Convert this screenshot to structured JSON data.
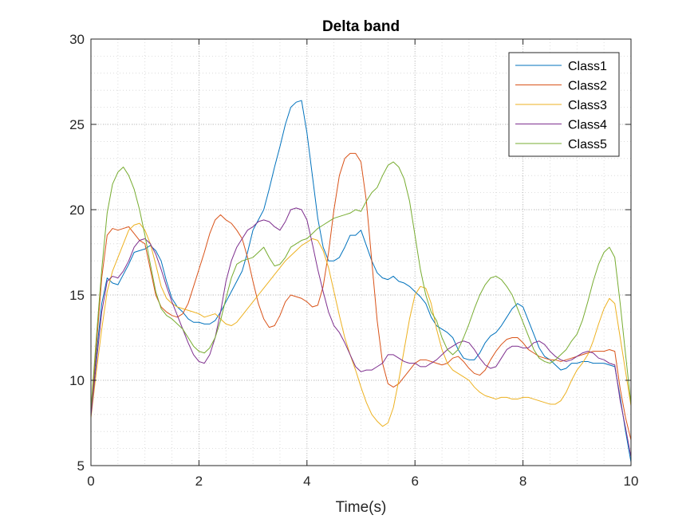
{
  "chart_data": {
    "type": "line",
    "title": "Delta band",
    "xlabel": "Time(s)",
    "ylabel": "",
    "xlim": [
      0,
      10
    ],
    "ylim": [
      5,
      30
    ],
    "xticks": [
      0,
      2,
      4,
      6,
      8,
      10
    ],
    "yticks": [
      5,
      10,
      15,
      20,
      25,
      30
    ],
    "grid": "on (major and minor, dotted)",
    "legend_location": "top-right",
    "series": [
      {
        "name": "Class1",
        "color": "#0072BD",
        "x": [
          0,
          0.1,
          0.2,
          0.3,
          0.4,
          0.5,
          0.6,
          0.7,
          0.8,
          0.9,
          1.0,
          1.1,
          1.2,
          1.3,
          1.4,
          1.5,
          1.6,
          1.7,
          1.8,
          1.9,
          2.0,
          2.1,
          2.2,
          2.3,
          2.4,
          2.5,
          2.6,
          2.7,
          2.8,
          2.9,
          3.0,
          3.1,
          3.2,
          3.3,
          3.4,
          3.5,
          3.6,
          3.7,
          3.8,
          3.9,
          4.0,
          4.1,
          4.2,
          4.3,
          4.4,
          4.5,
          4.6,
          4.7,
          4.8,
          4.9,
          5.0,
          5.1,
          5.2,
          5.3,
          5.4,
          5.5,
          5.6,
          5.7,
          5.8,
          5.9,
          6.0,
          6.1,
          6.2,
          6.3,
          6.4,
          6.5,
          6.6,
          6.7,
          6.8,
          6.9,
          7.0,
          7.1,
          7.2,
          7.3,
          7.4,
          7.5,
          7.6,
          7.7,
          7.8,
          7.9,
          8.0,
          8.1,
          8.2,
          8.3,
          8.4,
          8.5,
          8.6,
          8.7,
          8.8,
          8.9,
          9.0,
          9.1,
          9.2,
          9.3,
          9.4,
          9.5,
          9.6,
          9.7,
          9.8,
          9.9,
          10.0
        ],
        "y": [
          8.2,
          11.5,
          14.5,
          16.0,
          15.7,
          15.6,
          16.2,
          16.8,
          17.5,
          17.6,
          17.7,
          17.9,
          17.6,
          17.0,
          15.8,
          14.8,
          14.3,
          14.0,
          13.6,
          13.4,
          13.4,
          13.3,
          13.3,
          13.5,
          14.0,
          14.6,
          15.2,
          15.8,
          16.4,
          17.5,
          18.8,
          19.4,
          20.0,
          21.2,
          22.5,
          23.7,
          25.0,
          26.0,
          26.3,
          26.4,
          24.5,
          22.0,
          19.5,
          17.8,
          17.0,
          17.0,
          17.2,
          17.8,
          18.5,
          18.5,
          18.8,
          17.9,
          17.0,
          16.3,
          16.0,
          15.9,
          16.1,
          15.8,
          15.7,
          15.5,
          15.2,
          14.9,
          14.5,
          13.7,
          13.2,
          13.0,
          12.8,
          12.5,
          11.8,
          11.3,
          11.2,
          11.2,
          11.6,
          12.2,
          12.6,
          12.8,
          13.2,
          13.7,
          14.2,
          14.5,
          14.3,
          13.5,
          12.7,
          11.9,
          11.4,
          11.2,
          10.9,
          10.6,
          10.7,
          11.0,
          11.0,
          11.1,
          11.1,
          11.0,
          11.0,
          11.0,
          10.9,
          10.8,
          9.0,
          7.0,
          5.2
        ]
      },
      {
        "name": "Class2",
        "color": "#D95319",
        "x": [
          0,
          0.1,
          0.2,
          0.3,
          0.4,
          0.5,
          0.6,
          0.7,
          0.8,
          0.9,
          1.0,
          1.1,
          1.2,
          1.3,
          1.4,
          1.5,
          1.6,
          1.7,
          1.8,
          1.9,
          2.0,
          2.1,
          2.2,
          2.3,
          2.4,
          2.5,
          2.6,
          2.7,
          2.8,
          2.9,
          3.0,
          3.1,
          3.2,
          3.3,
          3.4,
          3.5,
          3.6,
          3.7,
          3.8,
          3.9,
          4.0,
          4.1,
          4.2,
          4.3,
          4.4,
          4.5,
          4.6,
          4.7,
          4.8,
          4.9,
          5.0,
          5.1,
          5.2,
          5.3,
          5.4,
          5.5,
          5.6,
          5.7,
          5.8,
          5.9,
          6.0,
          6.1,
          6.2,
          6.3,
          6.4,
          6.5,
          6.6,
          6.7,
          6.8,
          6.9,
          7.0,
          7.1,
          7.2,
          7.3,
          7.4,
          7.5,
          7.6,
          7.7,
          7.8,
          7.9,
          8.0,
          8.1,
          8.2,
          8.3,
          8.4,
          8.5,
          8.6,
          8.7,
          8.8,
          8.9,
          9.0,
          9.1,
          9.2,
          9.3,
          9.4,
          9.5,
          9.6,
          9.7,
          9.8,
          9.9,
          10.0
        ],
        "y": [
          8.0,
          12.0,
          16.0,
          18.5,
          18.9,
          18.8,
          18.9,
          19.0,
          18.6,
          18.2,
          18.0,
          16.5,
          15.0,
          14.3,
          14.0,
          13.8,
          13.7,
          13.9,
          14.5,
          15.5,
          16.5,
          17.5,
          18.6,
          19.4,
          19.7,
          19.4,
          19.2,
          18.8,
          18.3,
          17.2,
          15.8,
          14.5,
          13.6,
          13.1,
          13.2,
          13.8,
          14.6,
          15.0,
          14.9,
          14.8,
          14.6,
          14.3,
          14.4,
          15.5,
          17.5,
          20.0,
          22.0,
          23.0,
          23.3,
          23.3,
          22.8,
          20.5,
          17.0,
          13.5,
          11.0,
          9.8,
          9.6,
          9.8,
          10.2,
          10.6,
          11.0,
          11.2,
          11.2,
          11.1,
          11.0,
          10.9,
          11.0,
          11.3,
          11.4,
          11.1,
          10.7,
          10.4,
          10.3,
          10.6,
          11.2,
          11.7,
          12.1,
          12.4,
          12.5,
          12.5,
          12.2,
          11.8,
          11.6,
          11.4,
          11.3,
          11.2,
          11.2,
          11.1,
          11.2,
          11.3,
          11.4,
          11.5,
          11.6,
          11.7,
          11.7,
          11.7,
          11.8,
          11.7,
          9.5,
          7.8,
          6.5
        ]
      },
      {
        "name": "Class3",
        "color": "#EDB120",
        "x": [
          0,
          0.1,
          0.2,
          0.3,
          0.4,
          0.5,
          0.6,
          0.7,
          0.8,
          0.9,
          1.0,
          1.1,
          1.2,
          1.3,
          1.4,
          1.5,
          1.6,
          1.7,
          1.8,
          1.9,
          2.0,
          2.1,
          2.2,
          2.3,
          2.4,
          2.5,
          2.6,
          2.7,
          2.8,
          2.9,
          3.0,
          3.1,
          3.2,
          3.3,
          3.4,
          3.5,
          3.6,
          3.7,
          3.8,
          3.9,
          4.0,
          4.1,
          4.2,
          4.3,
          4.4,
          4.5,
          4.6,
          4.7,
          4.8,
          4.9,
          5.0,
          5.1,
          5.2,
          5.3,
          5.4,
          5.5,
          5.6,
          5.7,
          5.8,
          5.9,
          6.0,
          6.1,
          6.2,
          6.3,
          6.4,
          6.5,
          6.6,
          6.7,
          6.8,
          6.9,
          7.0,
          7.1,
          7.2,
          7.3,
          7.4,
          7.5,
          7.6,
          7.7,
          7.8,
          7.9,
          8.0,
          8.1,
          8.2,
          8.3,
          8.4,
          8.5,
          8.6,
          8.7,
          8.8,
          8.9,
          9.0,
          9.1,
          9.2,
          9.3,
          9.4,
          9.5,
          9.6,
          9.7,
          9.8,
          9.9,
          10.0
        ],
        "y": [
          7.8,
          10.5,
          13.0,
          15.2,
          16.4,
          17.2,
          18.0,
          18.8,
          19.1,
          19.2,
          18.8,
          18.0,
          16.8,
          15.5,
          14.8,
          14.5,
          14.3,
          14.2,
          14.1,
          14.0,
          13.9,
          13.7,
          13.8,
          13.9,
          13.6,
          13.3,
          13.2,
          13.4,
          13.8,
          14.2,
          14.6,
          15.0,
          15.4,
          15.8,
          16.2,
          16.6,
          17.0,
          17.3,
          17.6,
          17.9,
          18.1,
          18.3,
          18.2,
          17.6,
          16.6,
          15.2,
          13.8,
          12.5,
          11.5,
          10.6,
          9.6,
          8.7,
          8.0,
          7.6,
          7.3,
          7.5,
          8.4,
          10.0,
          11.8,
          13.6,
          15.0,
          15.5,
          15.4,
          14.5,
          13.0,
          11.8,
          11.0,
          10.6,
          10.4,
          10.2,
          10.0,
          9.6,
          9.3,
          9.1,
          9.0,
          8.9,
          9.0,
          9.0,
          8.9,
          8.9,
          9.0,
          9.0,
          8.9,
          8.8,
          8.7,
          8.6,
          8.6,
          8.8,
          9.3,
          10.0,
          10.6,
          11.0,
          11.5,
          12.3,
          13.3,
          14.2,
          14.8,
          14.5,
          12.5,
          10.5,
          8.5
        ]
      },
      {
        "name": "Class4",
        "color": "#7E2F8E",
        "x": [
          0,
          0.1,
          0.2,
          0.3,
          0.4,
          0.5,
          0.6,
          0.7,
          0.8,
          0.9,
          1.0,
          1.1,
          1.2,
          1.3,
          1.4,
          1.5,
          1.6,
          1.7,
          1.8,
          1.9,
          2.0,
          2.1,
          2.2,
          2.3,
          2.4,
          2.5,
          2.6,
          2.7,
          2.8,
          2.9,
          3.0,
          3.1,
          3.2,
          3.3,
          3.4,
          3.5,
          3.6,
          3.7,
          3.8,
          3.9,
          4.0,
          4.1,
          4.2,
          4.3,
          4.4,
          4.5,
          4.6,
          4.7,
          4.8,
          4.9,
          5.0,
          5.1,
          5.2,
          5.3,
          5.4,
          5.5,
          5.6,
          5.7,
          5.8,
          5.9,
          6.0,
          6.1,
          6.2,
          6.3,
          6.4,
          6.5,
          6.6,
          6.7,
          6.8,
          6.9,
          7.0,
          7.1,
          7.2,
          7.3,
          7.4,
          7.5,
          7.6,
          7.7,
          7.8,
          7.9,
          8.0,
          8.1,
          8.2,
          8.3,
          8.4,
          8.5,
          8.6,
          8.7,
          8.8,
          8.9,
          9.0,
          9.1,
          9.2,
          9.3,
          9.4,
          9.5,
          9.6,
          9.7,
          9.8,
          9.9,
          10.0
        ],
        "y": [
          7.9,
          11.0,
          14.0,
          15.8,
          16.1,
          16.0,
          16.4,
          17.0,
          17.8,
          18.2,
          18.3,
          18.0,
          17.4,
          16.5,
          15.5,
          14.6,
          13.8,
          13.0,
          12.2,
          11.5,
          11.1,
          11.0,
          11.5,
          12.5,
          14.0,
          15.8,
          17.0,
          17.8,
          18.3,
          18.8,
          19.0,
          19.3,
          19.4,
          19.3,
          19.0,
          18.8,
          19.3,
          20.0,
          20.1,
          20.0,
          19.4,
          18.0,
          16.5,
          15.2,
          14.0,
          13.2,
          12.8,
          12.2,
          11.5,
          10.8,
          10.5,
          10.6,
          10.6,
          10.8,
          11.0,
          11.5,
          11.5,
          11.3,
          11.1,
          11.0,
          11.0,
          10.8,
          10.8,
          11.0,
          11.2,
          11.5,
          11.8,
          12.0,
          12.2,
          12.3,
          12.2,
          11.8,
          11.3,
          10.9,
          10.7,
          10.8,
          11.3,
          11.8,
          12.0,
          12.0,
          11.9,
          11.9,
          12.2,
          12.3,
          12.1,
          11.7,
          11.4,
          11.2,
          11.1,
          11.2,
          11.4,
          11.6,
          11.7,
          11.6,
          11.3,
          11.2,
          11.0,
          10.9,
          8.8,
          7.2,
          5.5
        ]
      },
      {
        "name": "Class5",
        "color": "#77AC30",
        "x": [
          0,
          0.1,
          0.2,
          0.3,
          0.4,
          0.5,
          0.6,
          0.7,
          0.8,
          0.9,
          1.0,
          1.1,
          1.2,
          1.3,
          1.4,
          1.5,
          1.6,
          1.7,
          1.8,
          1.9,
          2.0,
          2.1,
          2.2,
          2.3,
          2.4,
          2.5,
          2.6,
          2.7,
          2.8,
          2.9,
          3.0,
          3.1,
          3.2,
          3.3,
          3.4,
          3.5,
          3.6,
          3.7,
          3.8,
          3.9,
          4.0,
          4.1,
          4.2,
          4.3,
          4.4,
          4.5,
          4.6,
          4.7,
          4.8,
          4.9,
          5.0,
          5.1,
          5.2,
          5.3,
          5.4,
          5.5,
          5.6,
          5.7,
          5.8,
          5.9,
          6.0,
          6.1,
          6.2,
          6.3,
          6.4,
          6.5,
          6.6,
          6.7,
          6.8,
          6.9,
          7.0,
          7.1,
          7.2,
          7.3,
          7.4,
          7.5,
          7.6,
          7.7,
          7.8,
          7.9,
          8.0,
          8.1,
          8.2,
          8.3,
          8.4,
          8.5,
          8.6,
          8.7,
          8.8,
          8.9,
          9.0,
          9.1,
          9.2,
          9.3,
          9.4,
          9.5,
          9.6,
          9.7,
          9.8,
          9.9,
          10.0
        ],
        "y": [
          8.3,
          12.5,
          16.5,
          19.8,
          21.5,
          22.2,
          22.5,
          22.0,
          21.2,
          20.0,
          18.5,
          16.8,
          15.2,
          14.2,
          13.8,
          13.6,
          13.3,
          13.0,
          12.5,
          12.0,
          11.7,
          11.6,
          11.9,
          12.5,
          13.5,
          14.8,
          16.0,
          16.8,
          17.0,
          17.1,
          17.2,
          17.5,
          17.8,
          17.2,
          16.7,
          16.8,
          17.2,
          17.8,
          18.0,
          18.2,
          18.3,
          18.6,
          18.9,
          19.1,
          19.3,
          19.5,
          19.6,
          19.7,
          19.8,
          20.0,
          19.9,
          20.5,
          21.0,
          21.3,
          22.0,
          22.6,
          22.8,
          22.5,
          21.8,
          20.5,
          18.5,
          16.5,
          15.0,
          14.0,
          13.5,
          12.5,
          11.8,
          11.5,
          11.8,
          12.5,
          13.3,
          14.2,
          15.0,
          15.6,
          16.0,
          16.1,
          15.9,
          15.5,
          15.0,
          14.2,
          13.4,
          12.6,
          11.8,
          11.3,
          11.1,
          11.0,
          11.2,
          11.5,
          11.8,
          12.3,
          12.7,
          13.5,
          14.6,
          15.8,
          16.8,
          17.5,
          17.8,
          17.2,
          14.5,
          11.5,
          8.6
        ]
      }
    ]
  }
}
